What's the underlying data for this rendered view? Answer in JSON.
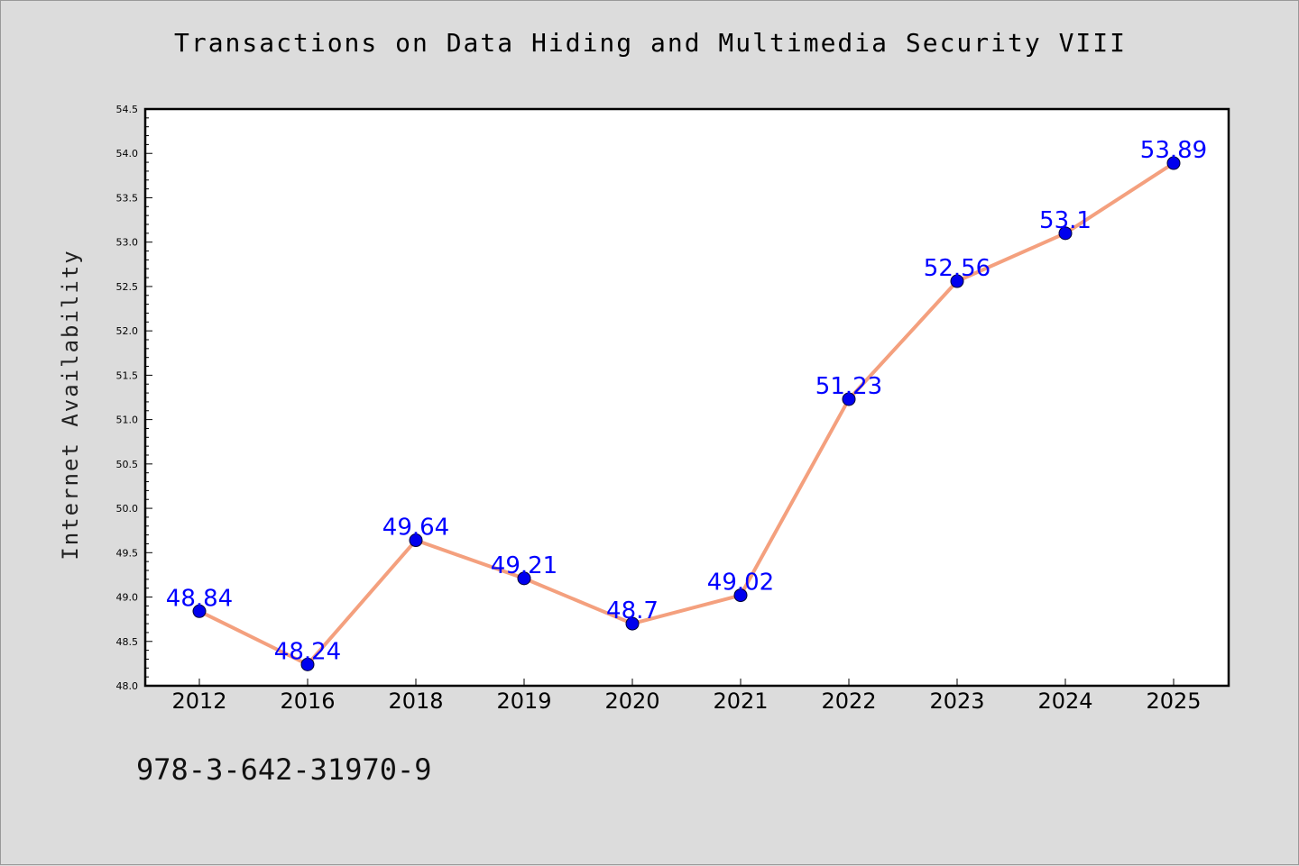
{
  "chart_data": {
    "type": "line",
    "title": "Transactions on Data Hiding and Multimedia Security VIII",
    "ylabel": "Internet Availability",
    "xlabel": "",
    "categories": [
      "2012",
      "2016",
      "2018",
      "2019",
      "2020",
      "2021",
      "2022",
      "2023",
      "2024",
      "2025"
    ],
    "series": [
      {
        "values": [
          48.84,
          48.24,
          49.64,
          49.21,
          48.7,
          49.02,
          51.23,
          52.56,
          53.1,
          53.89
        ],
        "labels": [
          "48.84",
          "48.24",
          "49.64",
          "49.21",
          "48.7",
          "49.02",
          "51.23",
          "52.56",
          "53.1",
          "53.89"
        ],
        "line_color": "#f4a07e",
        "marker_color": "#0000ee",
        "label_color": "#0000ff"
      }
    ],
    "ylim": [
      48.0,
      54.5
    ],
    "yticks": [
      "48.0",
      "48.5",
      "49.0",
      "49.5",
      "50.0",
      "50.5",
      "51.0",
      "51.5",
      "52.0",
      "52.5",
      "53.0",
      "53.5",
      "54.0",
      "54.5"
    ],
    "grid": false,
    "legend": "none"
  },
  "footer": {
    "code": "978-3-642-31970-9"
  },
  "colors": {
    "background": "#dcdcdc",
    "plot_background": "#ffffff"
  }
}
